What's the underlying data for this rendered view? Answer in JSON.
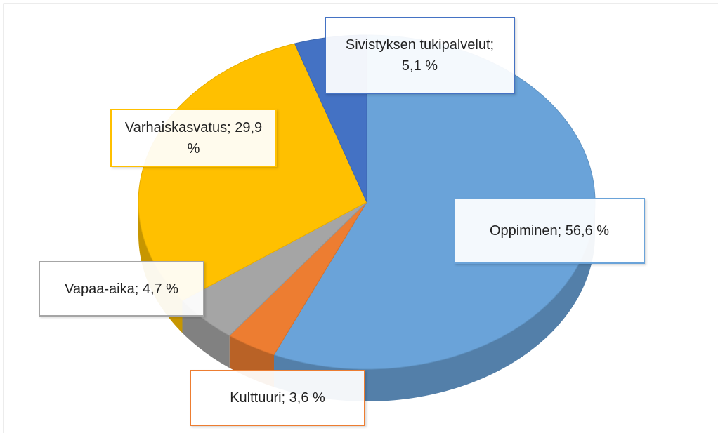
{
  "chart_data": {
    "type": "pie",
    "three_d": true,
    "values": [
      56.6,
      3.6,
      4.7,
      29.9,
      5.1
    ],
    "value_labels": [
      "Oppiminen; 56,6 %",
      "Kulttuuri; 3,6 %",
      "Vapaa-aika; 4,7 %",
      "Varhaiskasvatus; 29,9 %",
      "Sivistyksen tukipalvelut; 5,1 %"
    ],
    "colors": [
      "#6aa3d9",
      "#ed7d31",
      "#a5a5a5",
      "#ffc000",
      "#4472c4"
    ]
  }
}
